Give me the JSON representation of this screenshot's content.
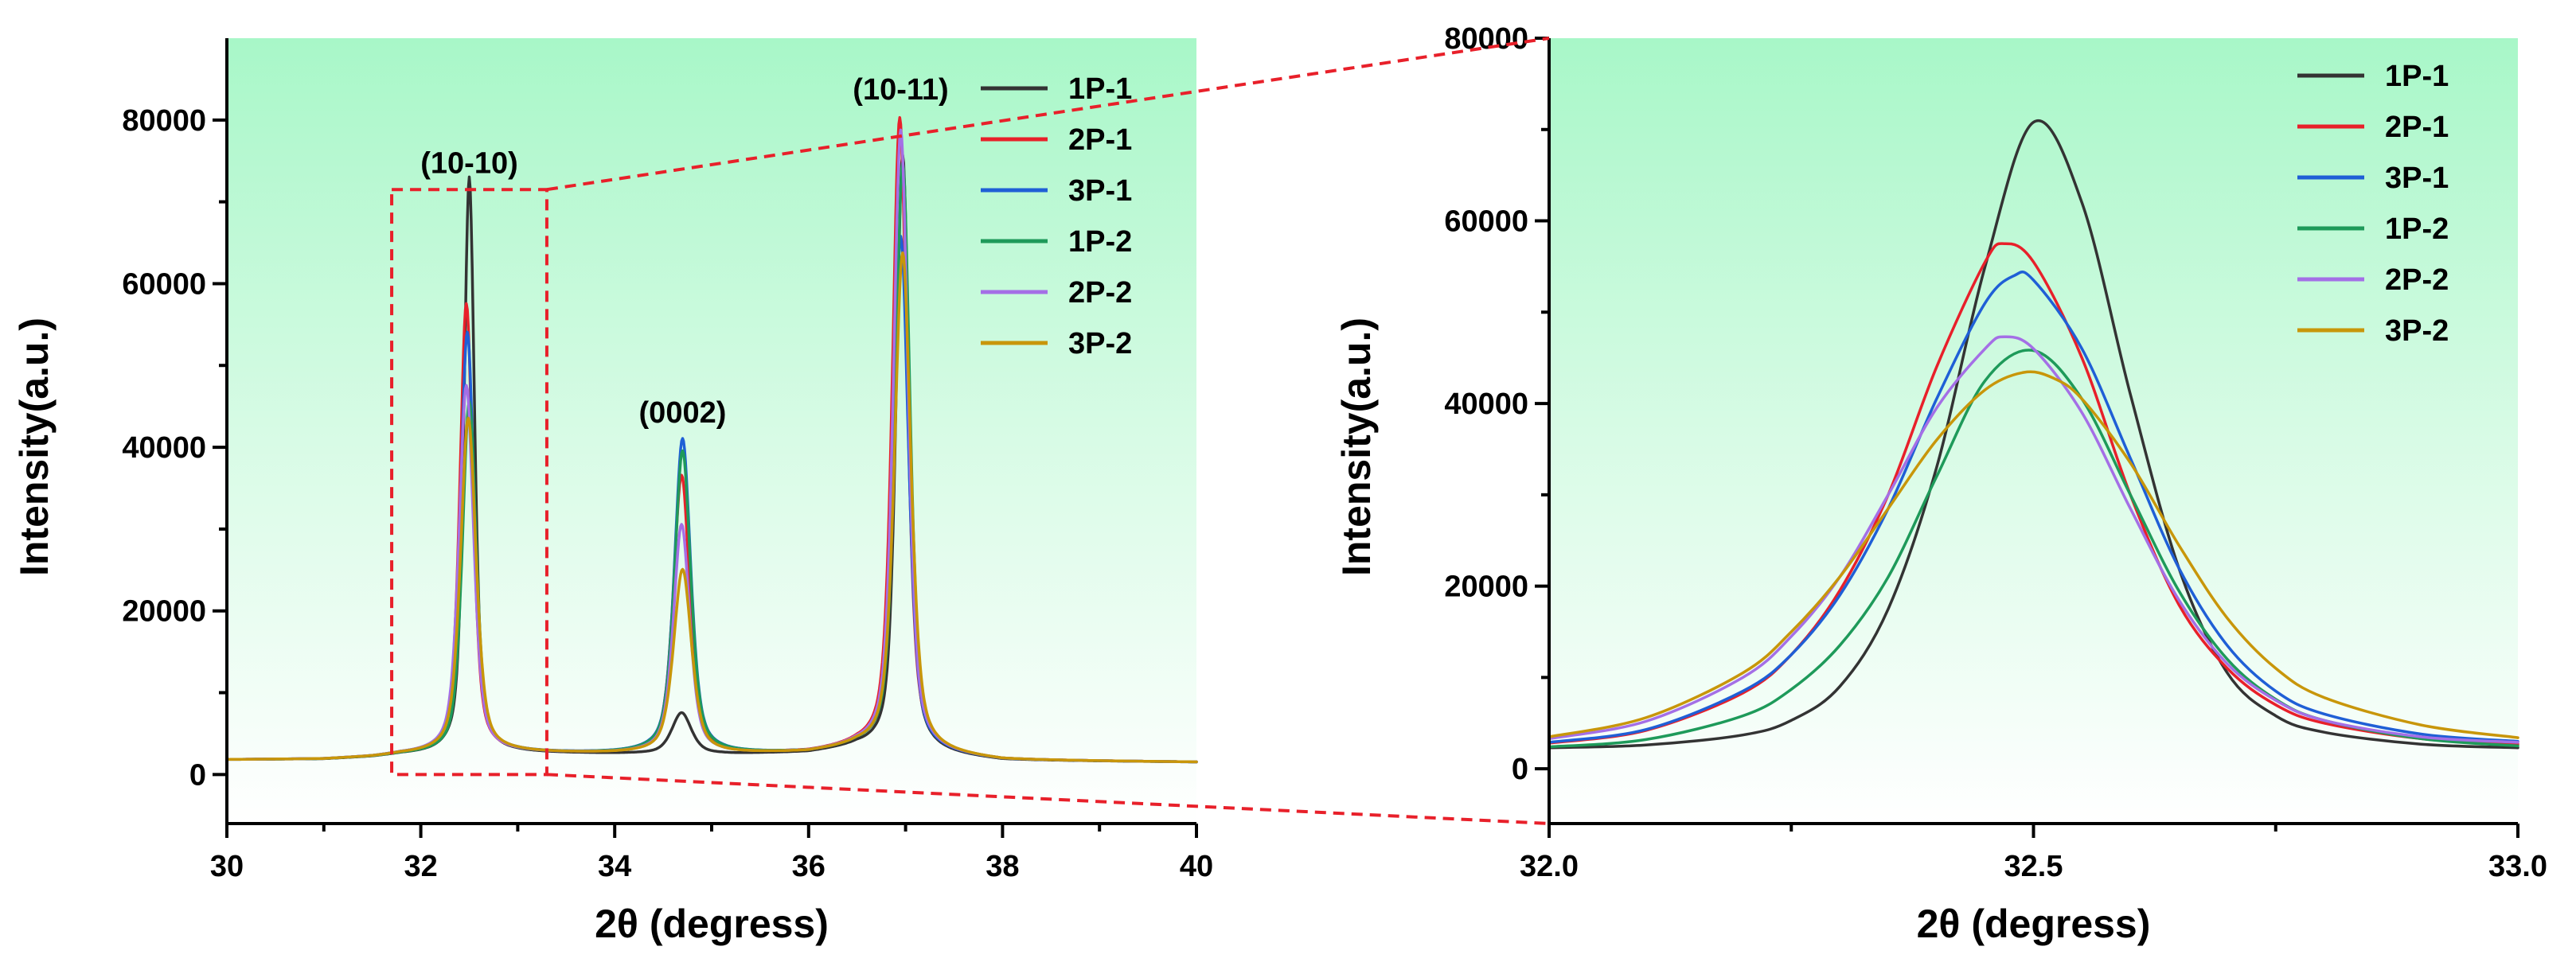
{
  "chart_data": [
    {
      "type": "line",
      "xlabel": "2θ (degress)",
      "ylabel": "Intensity(a.u.)",
      "xlim": [
        30,
        40
      ],
      "ylim": [
        -6000,
        90000
      ],
      "xticks": [
        30,
        32,
        34,
        36,
        38,
        40
      ],
      "yticks": [
        0,
        20000,
        40000,
        60000,
        80000
      ],
      "background_gradient": [
        "#a8f7c8",
        "#ffffff"
      ],
      "annotations": [
        {
          "text": "(10-10)",
          "x": 32.5,
          "y": 73500
        },
        {
          "text": "(0002)",
          "x": 34.7,
          "y": 43000
        },
        {
          "text": "(10-11)",
          "x": 36.95,
          "y": 82500
        }
      ],
      "zoom_box": {
        "x": [
          31.7,
          33.3
        ],
        "y": [
          0,
          71500
        ]
      },
      "baseline": {
        "x": [
          30,
          31,
          31.5,
          31.8,
          33.0,
          34.0,
          35.2,
          36.0,
          36.5,
          37.5,
          38,
          40
        ],
        "y": [
          1800,
          1850,
          2100,
          2400,
          2600,
          2500,
          2450,
          2600,
          3200,
          2200,
          1700,
          1500
        ]
      },
      "series": [
        {
          "name": "1P-1",
          "color": "#333333",
          "peaks": [
            [
              32.5,
              70500,
              0.065
            ],
            [
              34.69,
              5000,
              0.12
            ],
            [
              36.97,
              73000,
              0.08
            ]
          ]
        },
        {
          "name": "2P-1",
          "color": "#e8202a",
          "peaks": [
            [
              32.47,
              55000,
              0.08
            ],
            [
              34.69,
              34000,
              0.1
            ],
            [
              36.94,
              77500,
              0.09
            ]
          ]
        },
        {
          "name": "3P-1",
          "color": "#1f5fd6",
          "peaks": [
            [
              32.48,
              51500,
              0.085
            ],
            [
              34.7,
              38500,
              0.1
            ],
            [
              36.95,
              63000,
              0.095
            ]
          ]
        },
        {
          "name": "1P-2",
          "color": "#1e9a5a",
          "peaks": [
            [
              32.5,
              43000,
              0.085
            ],
            [
              34.7,
              37000,
              0.1
            ],
            [
              36.97,
              72000,
              0.09
            ]
          ]
        },
        {
          "name": "2P-2",
          "color": "#a46fe6",
          "peaks": [
            [
              32.47,
              45000,
              0.09
            ],
            [
              34.69,
              28000,
              0.1
            ],
            [
              36.95,
              76000,
              0.09
            ]
          ]
        },
        {
          "name": "3P-2",
          "color": "#c8960a",
          "peaks": [
            [
              32.49,
              41000,
              0.095
            ],
            [
              34.7,
              22500,
              0.11
            ],
            [
              36.97,
              61000,
              0.1
            ]
          ]
        }
      ]
    },
    {
      "type": "line",
      "xlabel": "2θ (degress)",
      "ylabel": "Intensity(a.u.)",
      "xlim": [
        32.0,
        33.0
      ],
      "ylim": [
        -6000,
        80000
      ],
      "xticks": [
        32.0,
        32.5,
        33.0
      ],
      "xtick_labels": [
        "32.0",
        "32.5",
        "33.0"
      ],
      "yticks": [
        0,
        20000,
        40000,
        60000,
        80000
      ],
      "background_gradient": [
        "#a8f7c8",
        "#ffffff"
      ],
      "series": [
        {
          "name": "1P-1",
          "color": "#333333",
          "x": [
            32.0,
            32.1,
            32.2,
            32.25,
            32.3,
            32.35,
            32.4,
            32.45,
            32.5,
            32.55,
            32.6,
            32.65,
            32.7,
            32.75,
            32.8,
            32.9,
            33.0
          ],
          "y": [
            2300,
            2600,
            3700,
            5300,
            9000,
            17500,
            33000,
            55000,
            70800,
            62000,
            41000,
            22000,
            10500,
            5800,
            4000,
            2700,
            2300
          ]
        },
        {
          "name": "2P-1",
          "color": "#e8202a",
          "x": [
            32.0,
            32.1,
            32.2,
            32.25,
            32.3,
            32.35,
            32.4,
            32.45,
            32.47,
            32.5,
            32.55,
            32.6,
            32.65,
            32.7,
            32.75,
            32.8,
            32.9,
            33.0
          ],
          "y": [
            2800,
            4200,
            8300,
            12500,
            19500,
            30000,
            44000,
            55500,
            57500,
            55500,
            45000,
            30000,
            18000,
            11000,
            7000,
            5000,
            3300,
            2700
          ]
        },
        {
          "name": "3P-1",
          "color": "#1f5fd6",
          "x": [
            32.0,
            32.1,
            32.2,
            32.25,
            32.3,
            32.35,
            32.4,
            32.45,
            32.48,
            32.5,
            32.55,
            32.6,
            32.65,
            32.7,
            32.75,
            32.8,
            32.9,
            33.0
          ],
          "y": [
            2900,
            4300,
            8500,
            12500,
            19000,
            28500,
            40500,
            51000,
            54000,
            53500,
            46000,
            34000,
            22000,
            13500,
            8500,
            6000,
            3800,
            3000
          ]
        },
        {
          "name": "1P-2",
          "color": "#1e9a5a",
          "x": [
            32.0,
            32.1,
            32.2,
            32.25,
            32.3,
            32.35,
            32.4,
            32.45,
            32.5,
            32.55,
            32.6,
            32.65,
            32.7,
            32.75,
            32.8,
            32.9,
            33.0
          ],
          "y": [
            2400,
            3200,
            5800,
            8700,
            13500,
            21000,
            32000,
            42500,
            45800,
            40500,
            30000,
            19500,
            12000,
            7600,
            5300,
            3300,
            2500
          ]
        },
        {
          "name": "2P-2",
          "color": "#a46fe6",
          "x": [
            32.0,
            32.1,
            32.2,
            32.25,
            32.3,
            32.35,
            32.4,
            32.45,
            32.47,
            32.5,
            32.55,
            32.6,
            32.65,
            32.7,
            32.75,
            32.8,
            32.9,
            33.0
          ],
          "y": [
            3300,
            5200,
            10000,
            14500,
            21000,
            30000,
            39500,
            46000,
            47300,
            46000,
            39000,
            28500,
            18500,
            11500,
            7500,
            5300,
            3500,
            2900
          ]
        },
        {
          "name": "3P-2",
          "color": "#c8960a",
          "x": [
            32.0,
            32.1,
            32.2,
            32.25,
            32.3,
            32.35,
            32.4,
            32.45,
            32.49,
            32.52,
            32.55,
            32.6,
            32.65,
            32.7,
            32.75,
            32.8,
            32.9,
            33.0
          ],
          "y": [
            3500,
            5600,
            10500,
            15000,
            21000,
            28500,
            36000,
            41500,
            43400,
            42800,
            40500,
            33500,
            24500,
            16500,
            11000,
            7800,
            4800,
            3400
          ]
        }
      ]
    }
  ]
}
